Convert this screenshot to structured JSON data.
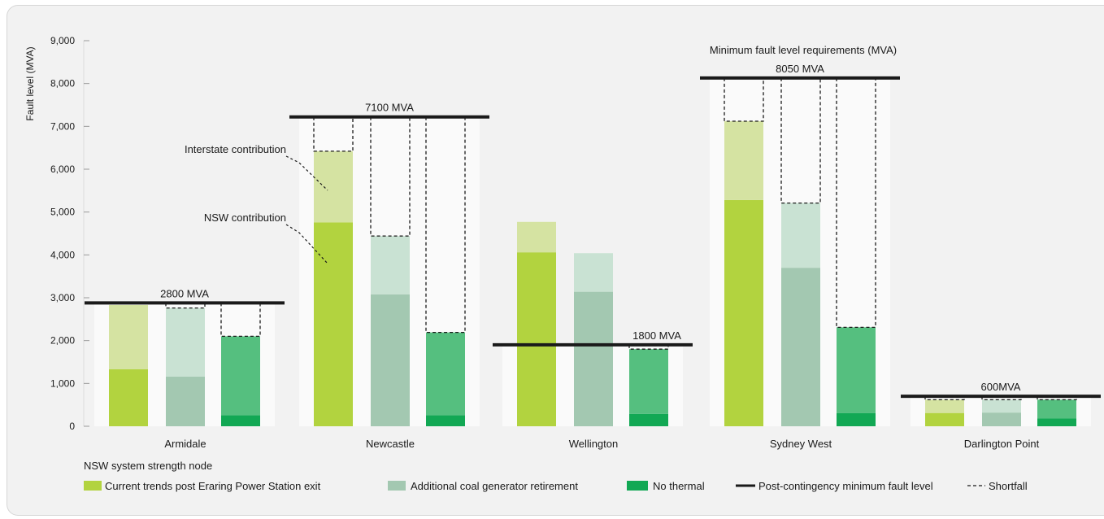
{
  "chart_data": {
    "type": "bar",
    "stacked": true,
    "ylabel": "Fault level (MVA)",
    "xlabel": "NSW system strength node",
    "ylim": [
      0,
      9000
    ],
    "yticks": [
      0,
      1000,
      2000,
      3000,
      4000,
      5000,
      6000,
      7000,
      8000,
      9000
    ],
    "ytick_labels": [
      "0",
      "1,000",
      "2,000",
      "3,000",
      "4,000",
      "5,000",
      "6,000",
      "7,000",
      "8,000",
      "9,000"
    ],
    "grid": false,
    "legend_position": "bottom",
    "categories": [
      "Armidale",
      "Newcastle",
      "Wellington",
      "Sydney West",
      "Darlington Point"
    ],
    "series": [
      {
        "name": "Current trends post Eraring Power Station exit",
        "nsw_contribution": [
          1330,
          4760,
          4060,
          5280,
          310
        ],
        "interstate_contribution": [
          1500,
          1660,
          710,
          1840,
          310
        ],
        "colors": {
          "nsw": "#b2d33f",
          "interstate": "#d5e3a2"
        }
      },
      {
        "name": "Additional coal generator retirement",
        "nsw_contribution": [
          1160,
          3080,
          3140,
          3700,
          320
        ],
        "interstate_contribution": [
          1600,
          1360,
          900,
          1510,
          300
        ],
        "colors": {
          "nsw": "#a3c8b1",
          "interstate": "#c9e2d3"
        }
      },
      {
        "name": "No thermal",
        "nsw_contribution": [
          260,
          260,
          290,
          310,
          180
        ],
        "interstate_contribution": [
          1840,
          1930,
          1510,
          2000,
          440
        ],
        "colors": {
          "nsw": "#12a854",
          "interstate": "#55bf7f"
        }
      }
    ],
    "minimum_fault_levels": [
      {
        "label": "2800 MVA",
        "value": 2880
      },
      {
        "label": "7100 MVA",
        "value": 7220
      },
      {
        "label": "1800 MVA",
        "value": 1900
      },
      {
        "label": "8050 MVA",
        "value": 8130
      },
      {
        "label": "600MVA",
        "value": 700
      }
    ],
    "annotations": {
      "requirements_title": "Minimum fault level requirements (MVA)",
      "interstate": "Interstate contribution",
      "nsw": "NSW contribution"
    },
    "legend": [
      {
        "label": "Current trends post Eraring Power Station exit",
        "kind": "swatch",
        "color": "#b2d33f"
      },
      {
        "label": "Additional coal generator retirement",
        "kind": "swatch",
        "color": "#a3c8b1"
      },
      {
        "label": "No thermal",
        "kind": "swatch",
        "color": "#12a854"
      },
      {
        "label": "Post-contingency minimum fault level",
        "kind": "line",
        "color": "#1a1a1a"
      },
      {
        "label": "Shortfall",
        "kind": "dashed",
        "color": "#1a1a1a"
      }
    ]
  }
}
